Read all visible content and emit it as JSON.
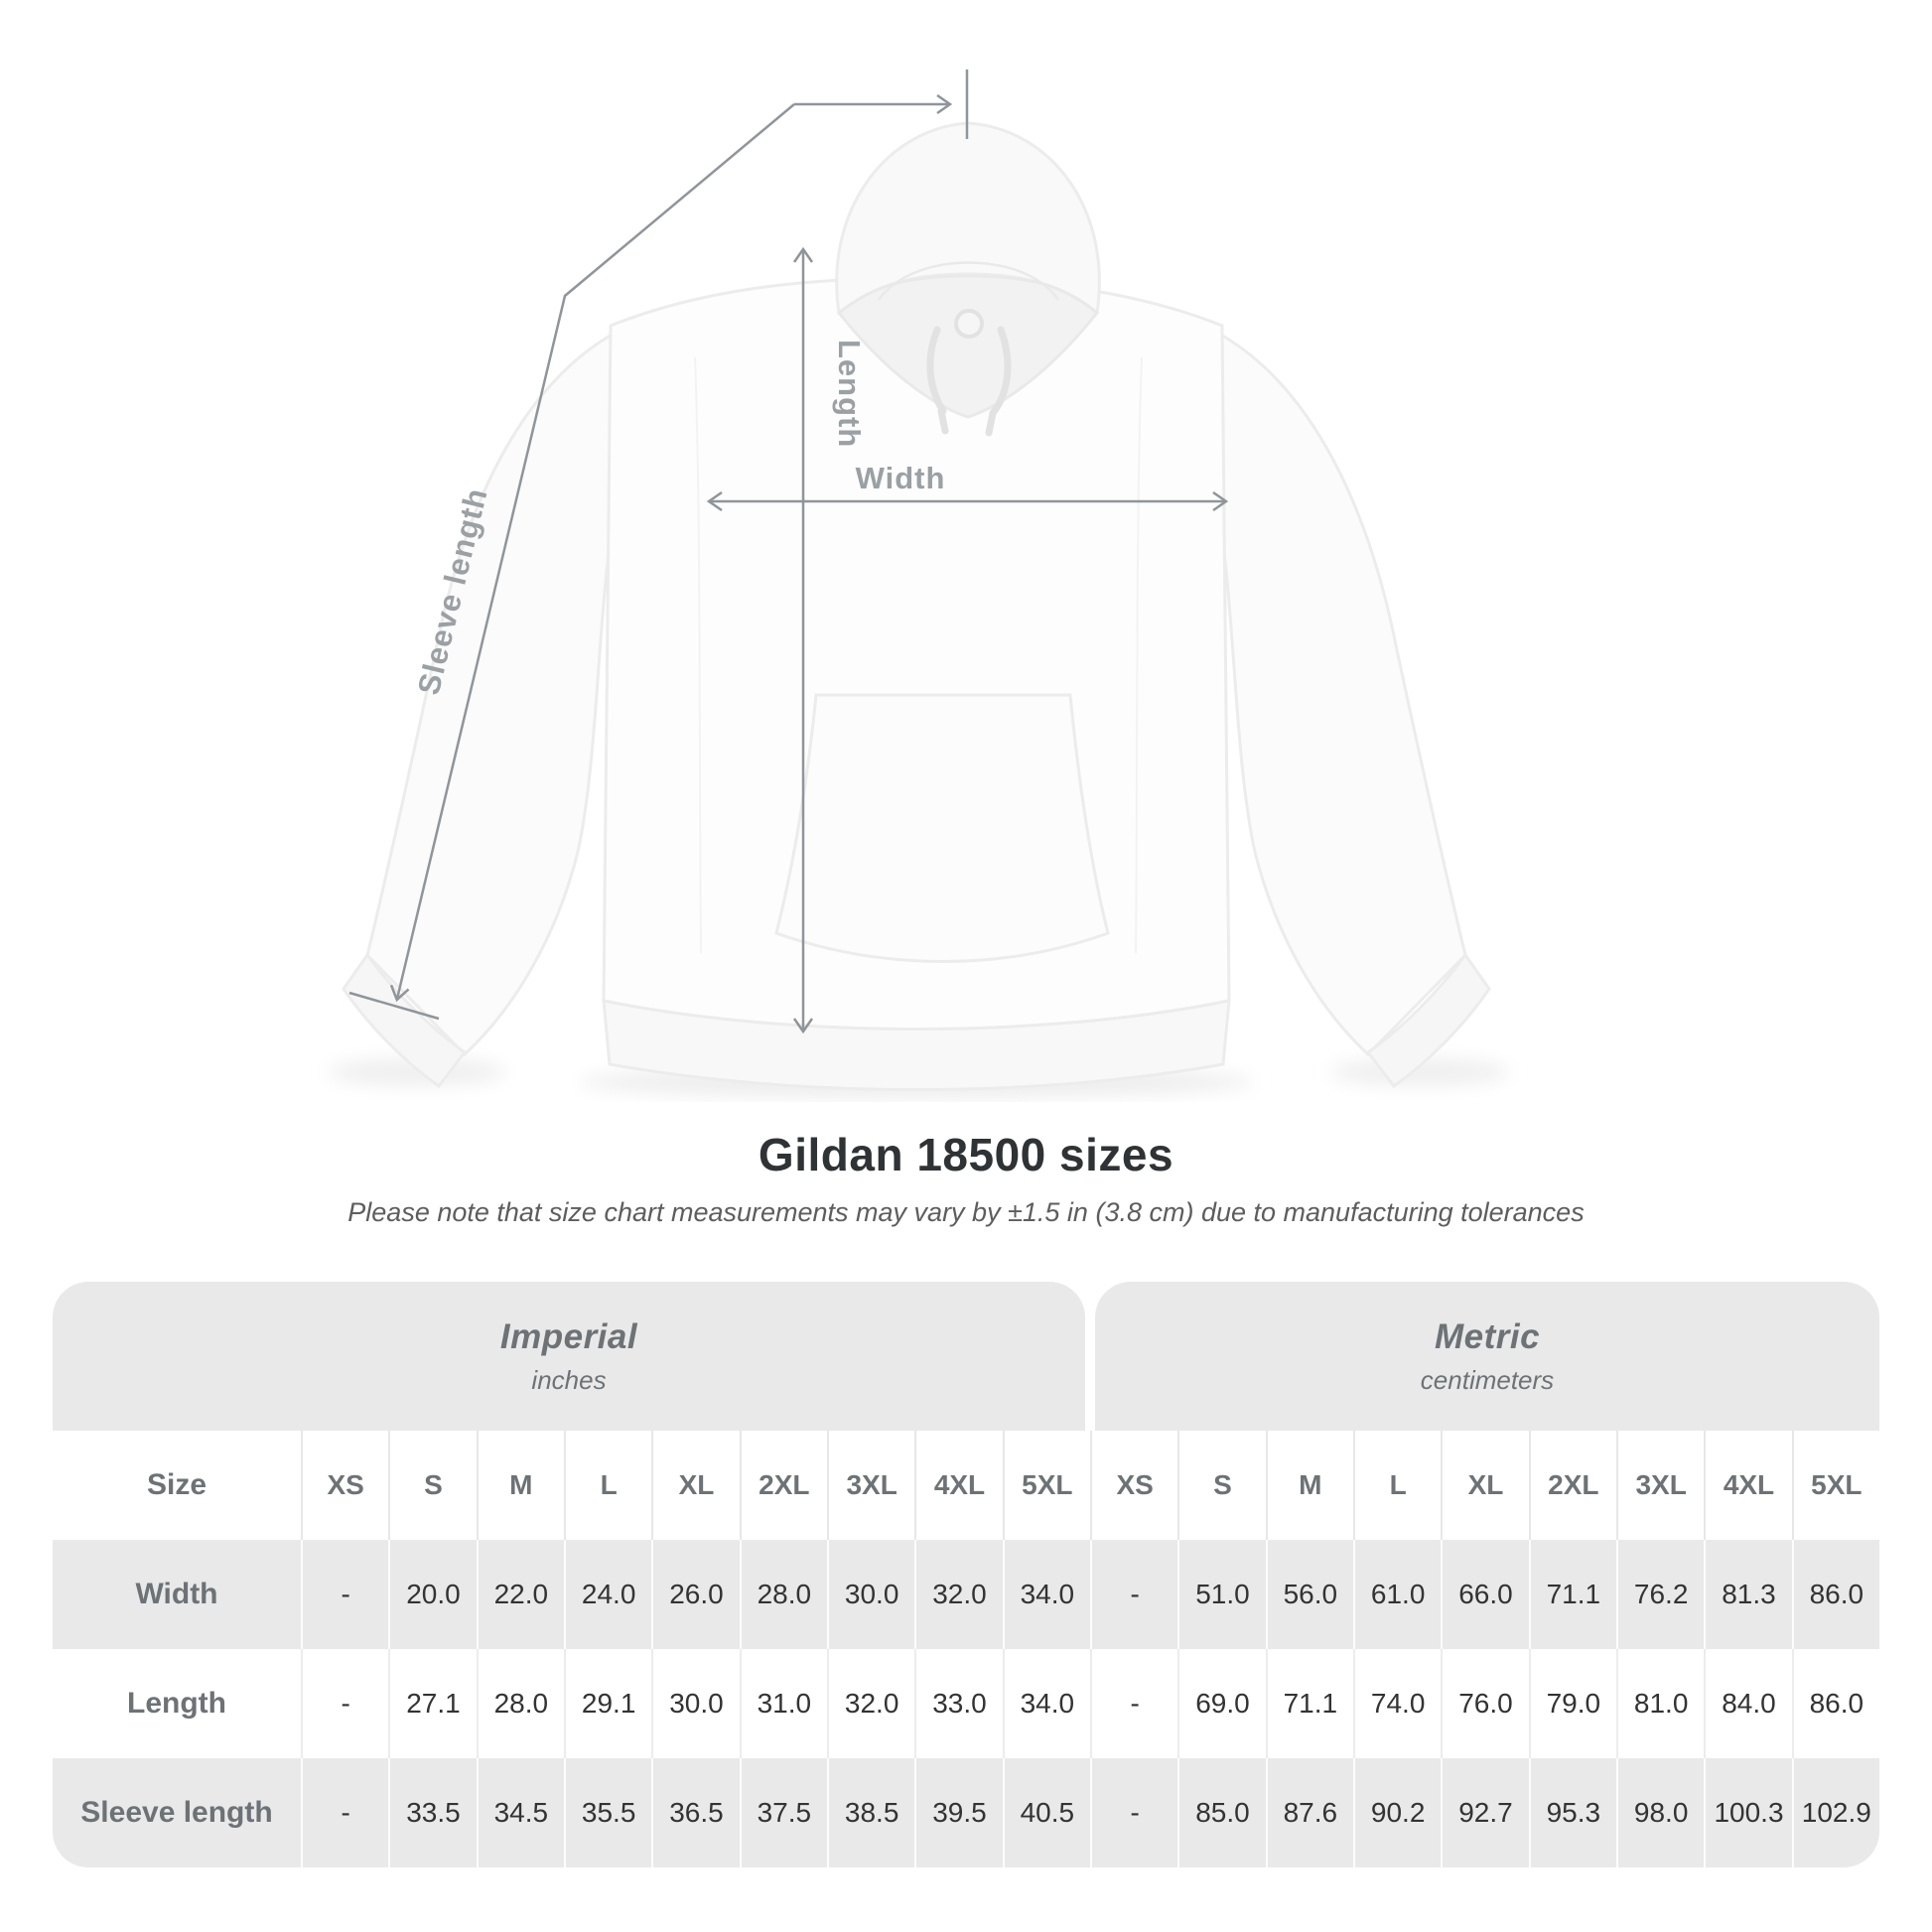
{
  "diagram": {
    "length_label": "Length",
    "width_label": "Width",
    "sleeve_label": "Sleeve length"
  },
  "title": "Gildan 18500 sizes",
  "subtitle": "Please note that size chart measurements may vary by ±1.5 in (3.8 cm) due to manufacturing tolerances",
  "table": {
    "size_label": "Size",
    "groups": [
      {
        "name": "Imperial",
        "unit": "inches"
      },
      {
        "name": "Metric",
        "unit": "centimeters"
      }
    ],
    "sizes": [
      "XS",
      "S",
      "M",
      "L",
      "XL",
      "2XL",
      "3XL",
      "4XL",
      "5XL"
    ],
    "rows": [
      {
        "label": "Width",
        "imperial": [
          "-",
          "20.0",
          "22.0",
          "24.0",
          "26.0",
          "28.0",
          "30.0",
          "32.0",
          "34.0"
        ],
        "metric": [
          "-",
          "51.0",
          "56.0",
          "61.0",
          "66.0",
          "71.1",
          "76.2",
          "81.3",
          "86.0"
        ]
      },
      {
        "label": "Length",
        "imperial": [
          "-",
          "27.1",
          "28.0",
          "29.1",
          "30.0",
          "31.0",
          "32.0",
          "33.0",
          "34.0"
        ],
        "metric": [
          "-",
          "69.0",
          "71.1",
          "74.0",
          "76.0",
          "79.0",
          "81.0",
          "84.0",
          "86.0"
        ]
      },
      {
        "label": "Sleeve length",
        "imperial": [
          "-",
          "33.5",
          "34.5",
          "35.5",
          "36.5",
          "37.5",
          "38.5",
          "39.5",
          "40.5"
        ],
        "metric": [
          "-",
          "85.0",
          "87.6",
          "90.2",
          "92.7",
          "95.3",
          "98.0",
          "100.3",
          "102.9"
        ]
      }
    ]
  },
  "colors": {
    "measure_line": "#8f959a",
    "measure_label": "#9aa0a4",
    "band_bg": "#e9e9e9",
    "alt_row_bg": "#e9e9e9",
    "header_text": "#6d7276",
    "value_text": "#333333"
  }
}
